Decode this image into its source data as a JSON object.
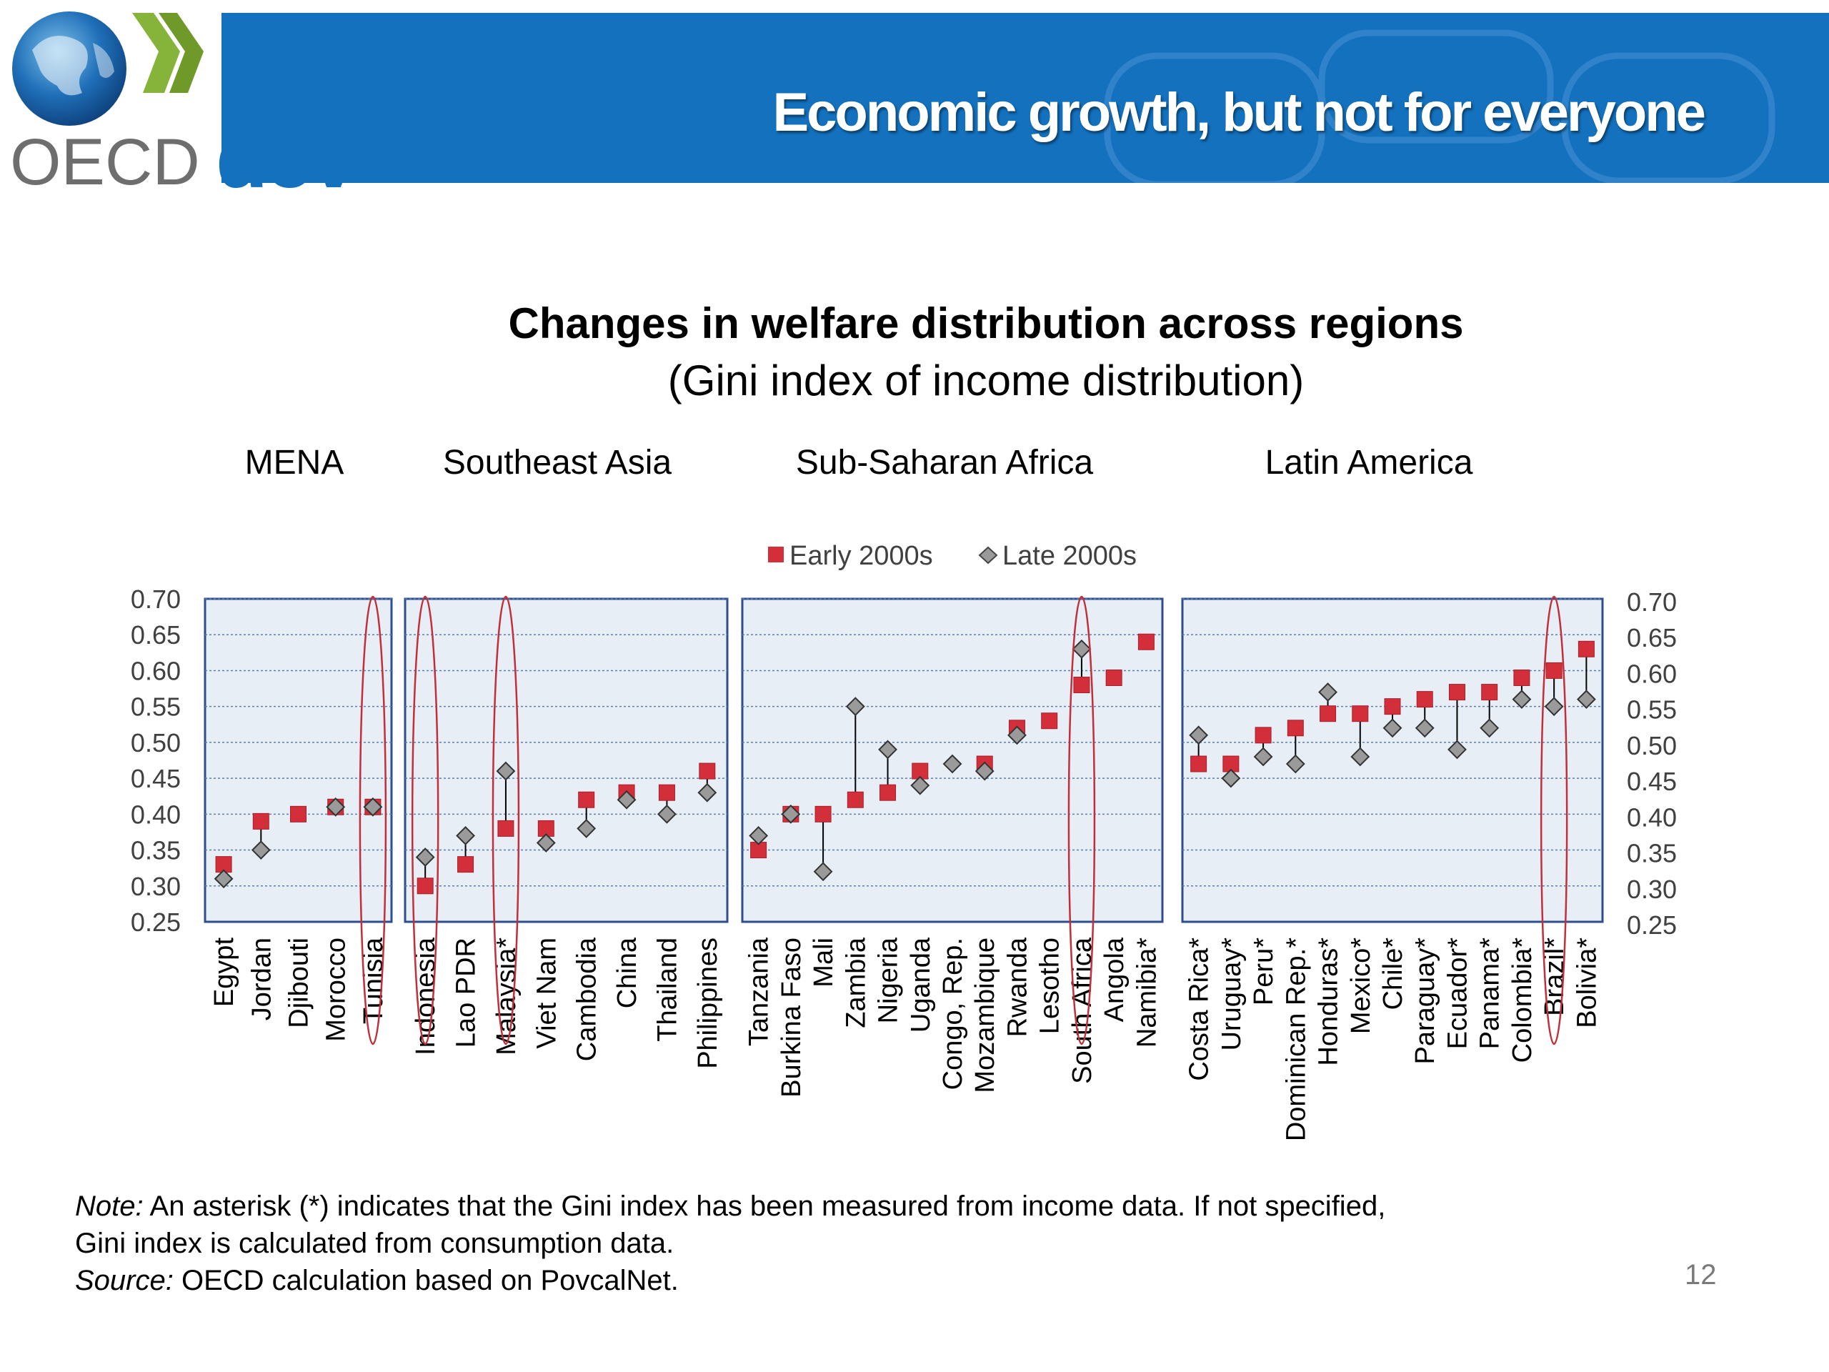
{
  "header": {
    "logo_text": "OECD",
    "brand_text": "dev",
    "banner_title": "Economic growth, but not for everyone"
  },
  "colors": {
    "banner_blue": "#1371be",
    "early_marker": "#d32f3a",
    "late_marker": "#9a9a9a",
    "panel_fill": "#e8eef6",
    "panel_border": "#2e4f8c",
    "highlight_ellipse": "#c0303a"
  },
  "chart_data": {
    "type": "scatter",
    "title": "Changes in welfare distribution across regions",
    "subtitle": "(Gini index of income distribution)",
    "ylim": [
      0.25,
      0.7
    ],
    "yticks": [
      "0.70",
      "0.65",
      "0.60",
      "0.55",
      "0.50",
      "0.45",
      "0.40",
      "0.35",
      "0.30",
      "0.25"
    ],
    "grid": true,
    "legend_position": "top-center",
    "legend": [
      {
        "name": "Early 2000s",
        "marker": "square"
      },
      {
        "name": "Late 2000s",
        "marker": "diamond"
      }
    ],
    "panels": [
      {
        "region": "MENA",
        "countries": [
          "Egypt",
          "Jordan",
          "Djibouti",
          "Morocco",
          "Tunisia"
        ],
        "early": [
          0.33,
          0.39,
          0.4,
          0.41,
          0.41
        ],
        "late": [
          0.31,
          0.35,
          null,
          0.41,
          0.41
        ],
        "highlighted": [
          "Tunisia"
        ]
      },
      {
        "region": "Southeast Asia",
        "countries": [
          "Indonesia",
          "Lao PDR",
          "Malaysia*",
          "Viet Nam",
          "Cambodia",
          "China",
          "Thailand",
          "Philippines"
        ],
        "early": [
          0.3,
          0.33,
          0.38,
          0.38,
          0.42,
          0.43,
          0.43,
          0.46
        ],
        "late": [
          0.34,
          0.37,
          0.46,
          0.36,
          0.38,
          0.42,
          0.4,
          0.43
        ],
        "highlighted": [
          "Indonesia",
          "Malaysia*"
        ]
      },
      {
        "region": "Sub-Saharan Africa",
        "countries": [
          "Tanzania",
          "Burkina Faso",
          "Mali",
          "Zambia",
          "Nigeria",
          "Uganda",
          "Congo, Rep.",
          "Mozambique",
          "Rwanda",
          "Lesotho",
          "South Africa",
          "Angola",
          "Namibia*"
        ],
        "early": [
          0.35,
          0.4,
          0.4,
          0.42,
          0.43,
          0.46,
          null,
          0.47,
          0.52,
          0.53,
          0.58,
          0.59,
          0.64
        ],
        "late": [
          0.37,
          0.4,
          0.32,
          0.55,
          0.49,
          0.44,
          0.47,
          0.46,
          0.51,
          null,
          0.63,
          null,
          null
        ],
        "highlighted": [
          "South Africa"
        ]
      },
      {
        "region": "Latin America",
        "countries": [
          "Costa Rica*",
          "Uruguay*",
          "Peru*",
          "Dominican Rep.*",
          "Honduras*",
          "Mexico*",
          "Chile*",
          "Paraguay*",
          "Ecuador*",
          "Panama*",
          "Colombia*",
          "Brazil*",
          "Bolivia*"
        ],
        "early": [
          0.47,
          0.47,
          0.51,
          0.52,
          0.54,
          0.54,
          0.55,
          0.56,
          0.57,
          0.57,
          0.59,
          0.6,
          0.63
        ],
        "late": [
          0.51,
          0.45,
          0.48,
          0.47,
          0.57,
          0.48,
          0.52,
          0.52,
          0.49,
          0.52,
          0.56,
          0.55,
          0.56
        ],
        "highlighted": [
          "Brazil*"
        ]
      }
    ]
  },
  "notes": {
    "note_label": "Note:",
    "note_text": " An asterisk (*) indicates that the Gini index has been measured from income data. If not specified, Gini index is calculated from consumption data.",
    "note_line1": " An asterisk (*) indicates that the Gini index has been measured from income data. If not specified,",
    "note_line2": "Gini index is calculated from consumption data.",
    "source_label": "Source:",
    "source_text": " OECD calculation based on PovcalNet."
  },
  "page_number": "12"
}
